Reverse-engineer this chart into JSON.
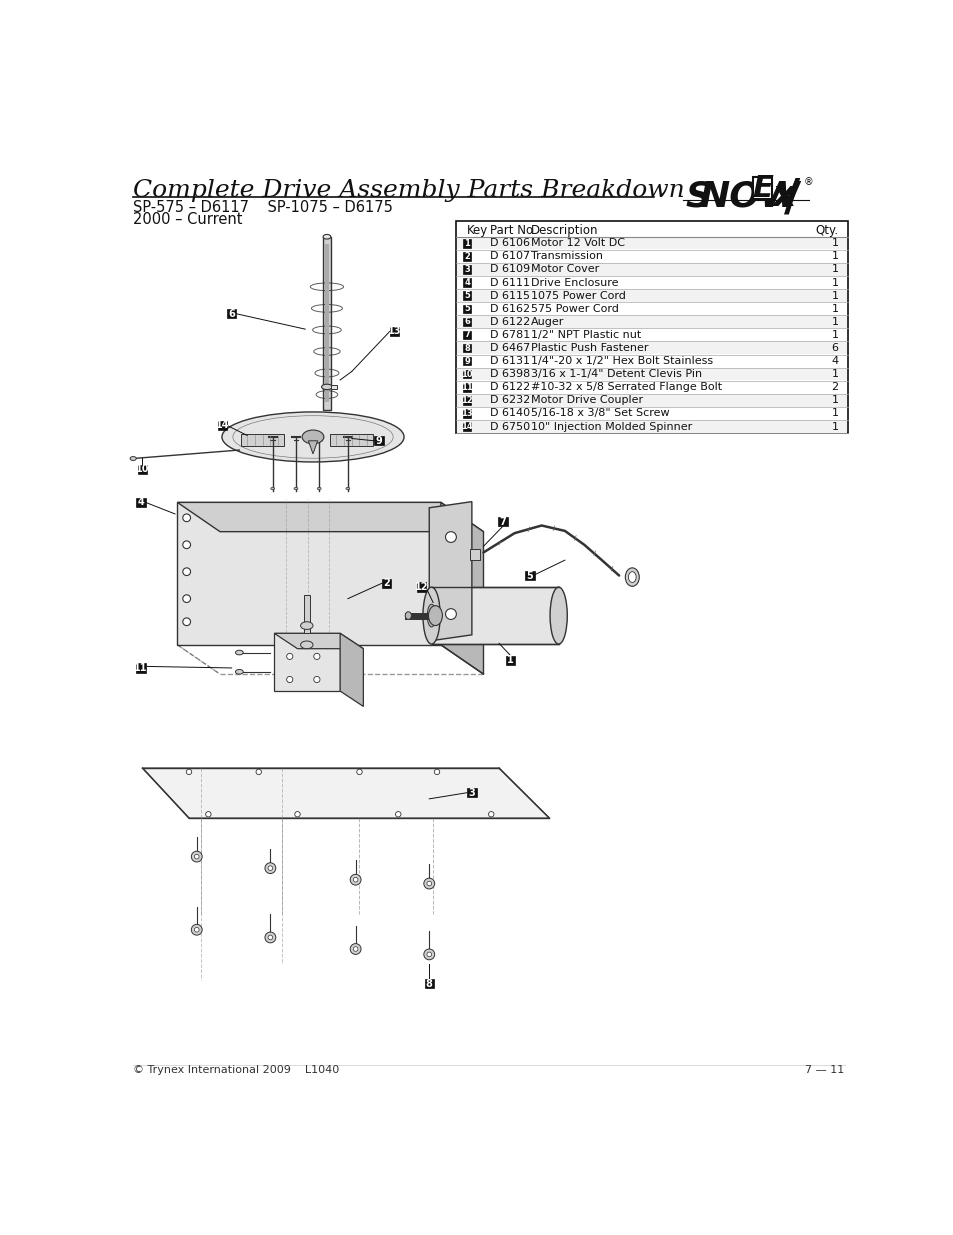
{
  "title": "Complete Drive Assembly Parts Breakdown",
  "subtitle1": "SP-575 – D6117    SP-1075 – D6175",
  "subtitle2": "2000 – Current",
  "footer_left": "© Trynex International 2009    L1040",
  "footer_right": "7 — 11",
  "table_headers": [
    "Key",
    "Part No.",
    "Description",
    "Qty."
  ],
  "table_data": [
    [
      "1",
      "D 6106",
      "Motor 12 Volt DC",
      "1"
    ],
    [
      "2",
      "D 6107",
      "Transmission",
      "1"
    ],
    [
      "3",
      "D 6109",
      "Motor Cover",
      "1"
    ],
    [
      "4",
      "D 6111",
      "Drive Enclosure",
      "1"
    ],
    [
      "5",
      "D 6115",
      "1075 Power Cord",
      "1"
    ],
    [
      "5",
      "D 6162",
      "575 Power Cord",
      "1"
    ],
    [
      "6",
      "D 6122",
      "Auger",
      "1"
    ],
    [
      "7",
      "D 6781",
      "1/2\" NPT Plastic nut",
      "1"
    ],
    [
      "8",
      "D 6467",
      "Plastic Push Fastener",
      "6"
    ],
    [
      "9",
      "D 6131",
      "1/4\"-20 x 1/2\" Hex Bolt Stainless",
      "4"
    ],
    [
      "10",
      "D 6398",
      "3/16 x 1-1/4\" Detent Clevis Pin",
      "1"
    ],
    [
      "11",
      "D 6122",
      "#10-32 x 5/8 Serrated Flange Bolt",
      "2"
    ],
    [
      "12",
      "D 6232",
      "Motor Drive Coupler",
      "1"
    ],
    [
      "13",
      "D 6140",
      "5/16-18 x 3/8\" Set Screw",
      "1"
    ],
    [
      "14",
      "D 6750",
      "10\" Injection Molded Spinner",
      "1"
    ]
  ],
  "bg_color": "#ffffff",
  "title_font_size": 18,
  "subtitle_font_size": 10.5,
  "table_header_font_size": 8.5,
  "table_body_font_size": 8,
  "footer_font_size": 8
}
